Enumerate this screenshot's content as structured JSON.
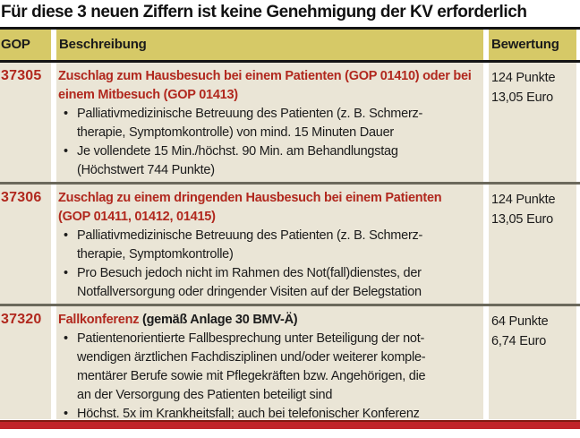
{
  "title": "Für diese 3 neuen Ziffern ist keine Genehmigung der KV erforderlich",
  "header": {
    "gop": "GOP",
    "beschreibung": "Beschreibung",
    "bewertung": "Bewertung"
  },
  "rows": [
    {
      "gop": "37305",
      "title_red": "Zuschlag zum Hausbesuch bei einem Patienten (GOP 01410) oder bei\neinem Mitbesuch (GOP 01413)",
      "title_black": "",
      "bullets": [
        "Palliativmedizinische Betreuung des Patienten (z. B. Schmerz-\ntherapie, Symptomkontrolle) von mind. 15 Minuten Dauer",
        "Je vollendete 15 Min./höchst. 90 Min. am Behandlungstag\n(Höchstwert 744 Punkte)"
      ],
      "points": "124 Punkte",
      "euro": "13,05 Euro"
    },
    {
      "gop": "37306",
      "title_red": "Zuschlag zu einem dringenden Hausbesuch bei einem Patienten\n(GOP 01411, 01412, 01415)",
      "title_black": "",
      "bullets": [
        "Palliativmedizinische Betreuung des Patienten (z. B. Schmerz-\ntherapie, Symptomkontrolle)",
        "Pro Besuch jedoch nicht im Rahmen des Not(fall)dienstes, der\nNotfallversorgung oder dringender Visiten auf der Belegstation"
      ],
      "points": "124 Punkte",
      "euro": "13,05 Euro"
    },
    {
      "gop": "37320",
      "title_red": "Fallkonferenz",
      "title_black": " (gemäß Anlage 30 BMV-Ä)",
      "bullets": [
        "Patientenorientierte Fallbesprechung unter Beteiligung der not-\nwendigen ärztlichen Fachdisziplinen und/oder weiterer komple-\nmentärer Berufe sowie mit Pflegekräften bzw. Angehörigen, die\nan der Versorgung des Patienten beteiligt sind",
        "Höchst. 5x im Krankheitsfall; auch bei telefonischer Konferenz"
      ],
      "points": "64 Punkte",
      "euro": "6,74 Euro"
    }
  ],
  "colors": {
    "header_gold": "#d6c967",
    "body_beige": "#eae5d6",
    "accent_red_text": "#b1281e",
    "row_separator": "#6b695c",
    "bottom_bar_red": "#c02429",
    "bottom_bar_edge": "#801a12",
    "rule_black": "#141414"
  }
}
